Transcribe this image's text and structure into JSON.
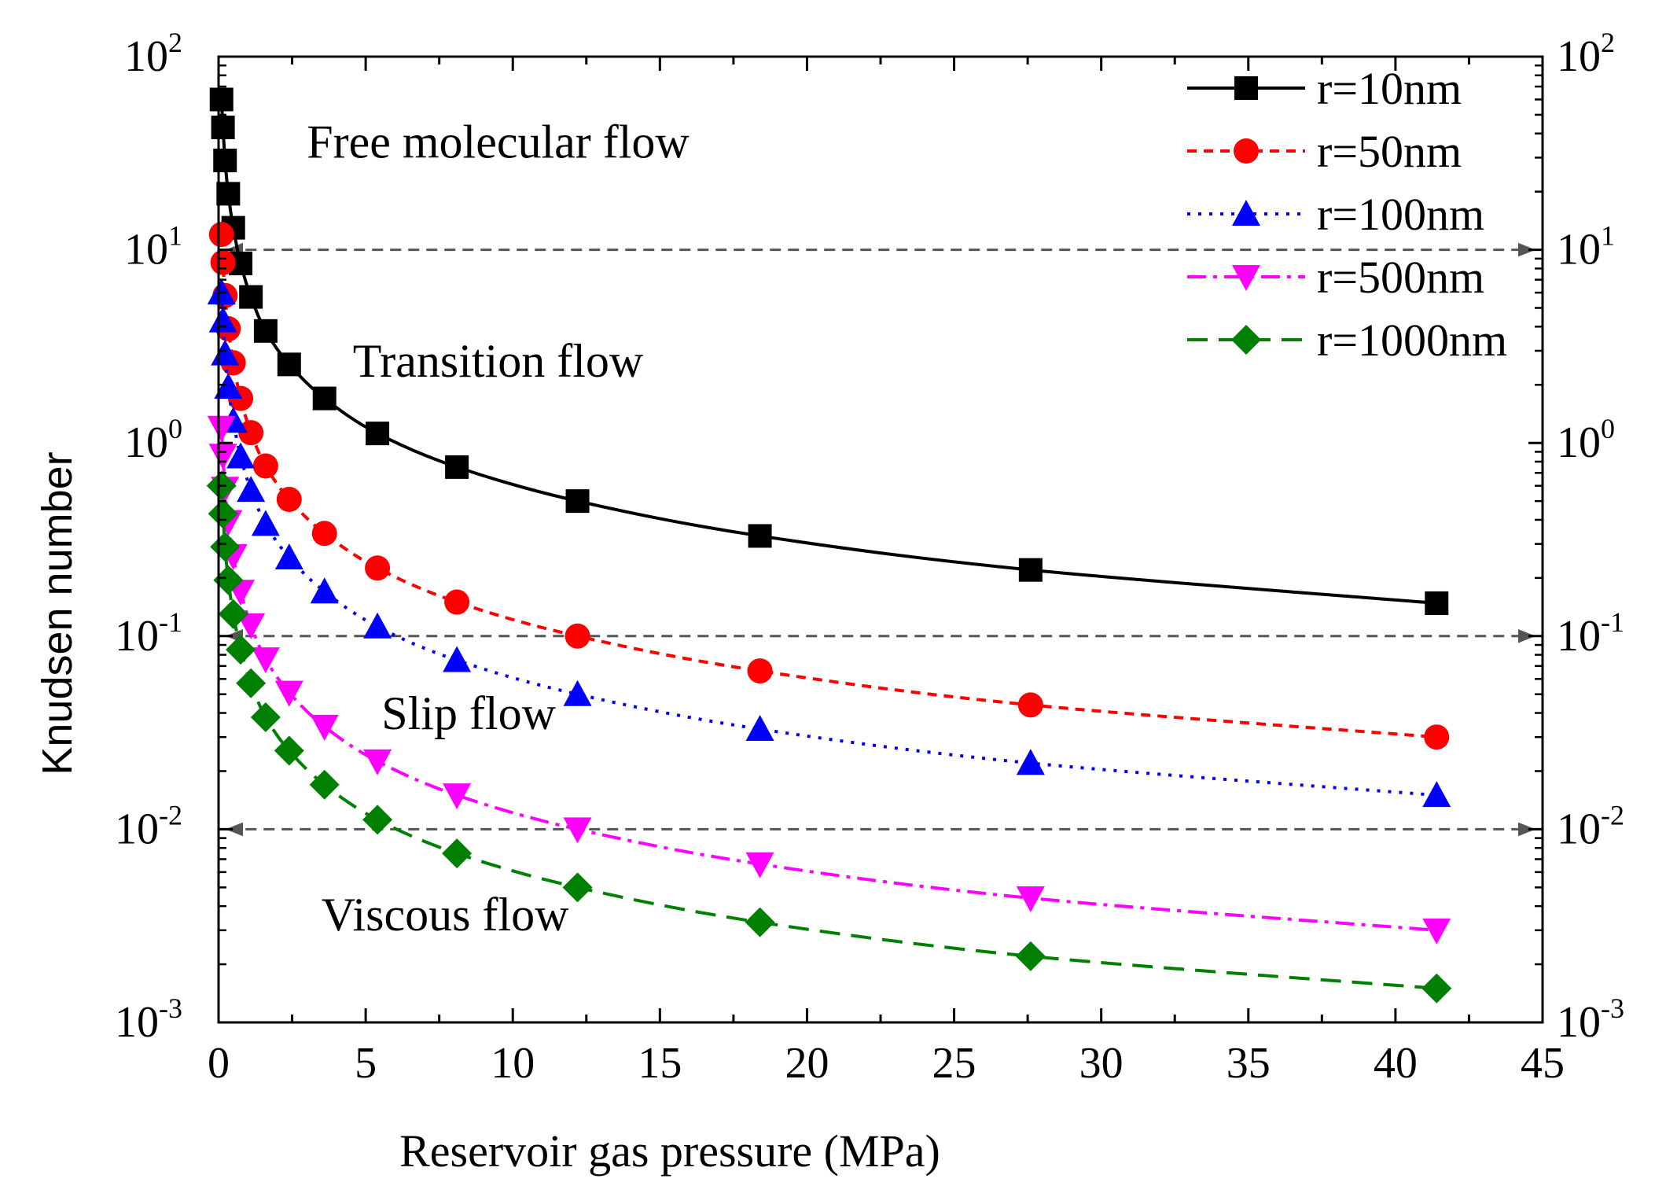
{
  "chart_data": {
    "type": "line",
    "yscale": "log",
    "xlabel": "Reservoir gas pressure (MPa)",
    "ylabel": "Knudsen number",
    "xlim": [
      0,
      45
    ],
    "ylim": [
      0.001,
      100
    ],
    "x_ticks": [
      0,
      5,
      10,
      15,
      20,
      25,
      30,
      35,
      40,
      45
    ],
    "x_tick_labels": [
      "0",
      "5",
      "10",
      "15",
      "20",
      "25",
      "30",
      "35",
      "40",
      "45"
    ],
    "y_ticks": [
      {
        "value": 100,
        "base": "10",
        "exp": "2"
      },
      {
        "value": 10,
        "base": "10",
        "exp": "1"
      },
      {
        "value": 1,
        "base": "10",
        "exp": "0"
      },
      {
        "value": 0.1,
        "base": "10",
        "exp": "-1"
      },
      {
        "value": 0.01,
        "base": "10",
        "exp": "-2"
      },
      {
        "value": 0.001,
        "base": "10",
        "exp": "-3"
      }
    ],
    "x": [
      0.1,
      0.15,
      0.22,
      0.33,
      0.5,
      0.75,
      1.1,
      1.6,
      2.4,
      3.6,
      5.4,
      8.1,
      12.2,
      18.4,
      27.6,
      41.4
    ],
    "series": [
      {
        "name": "r=10nm",
        "color": "#000000",
        "marker": "square",
        "dash": "solid",
        "values": [
          60,
          43,
          29,
          19.5,
          13,
          8.5,
          5.7,
          3.8,
          2.55,
          1.7,
          1.12,
          0.75,
          0.5,
          0.33,
          0.22,
          0.148
        ]
      },
      {
        "name": "r=50nm",
        "color": "#ff0000",
        "marker": "circle",
        "dash": "short-dash",
        "values": [
          12,
          8.6,
          5.8,
          3.9,
          2.6,
          1.7,
          1.13,
          0.76,
          0.51,
          0.34,
          0.225,
          0.15,
          0.1,
          0.066,
          0.044,
          0.03
        ]
      },
      {
        "name": "r=100nm",
        "color": "#0000ff",
        "marker": "triangle-up",
        "dash": "dot",
        "values": [
          6.0,
          4.3,
          2.9,
          1.95,
          1.3,
          0.85,
          0.57,
          0.38,
          0.255,
          0.17,
          0.112,
          0.075,
          0.05,
          0.033,
          0.022,
          0.015
        ]
      },
      {
        "name": "r=500nm",
        "color": "#ff00ff",
        "marker": "triangle-down",
        "dash": "dash-dot",
        "values": [
          1.2,
          0.86,
          0.58,
          0.39,
          0.26,
          0.17,
          0.114,
          0.076,
          0.051,
          0.034,
          0.0225,
          0.015,
          0.01,
          0.0066,
          0.0044,
          0.003
        ]
      },
      {
        "name": "r=1000nm",
        "color": "#008000",
        "marker": "diamond",
        "dash": "dash",
        "values": [
          0.6,
          0.43,
          0.29,
          0.195,
          0.13,
          0.085,
          0.057,
          0.038,
          0.0255,
          0.017,
          0.0112,
          0.0075,
          0.005,
          0.0033,
          0.0022,
          0.0015
        ]
      }
    ],
    "boundaries": [
      {
        "value": 10,
        "x_from": 0.3,
        "x_to": 44.7
      },
      {
        "value": 0.1,
        "x_from": 0.3,
        "x_to": 44.7
      },
      {
        "value": 0.01,
        "x_from": 0.3,
        "x_to": 44.7
      }
    ],
    "regions": [
      {
        "label": "Free molecular flow",
        "x": 9.5,
        "y": 30
      },
      {
        "label": "Transition flow",
        "x": 9.5,
        "y": 2.2
      },
      {
        "label": "Slip flow",
        "x": 8.5,
        "y": 0.033
      },
      {
        "label": "Viscous flow",
        "x": 7.7,
        "y": 0.003
      }
    ],
    "legend_position": "top-right",
    "grid": false
  }
}
